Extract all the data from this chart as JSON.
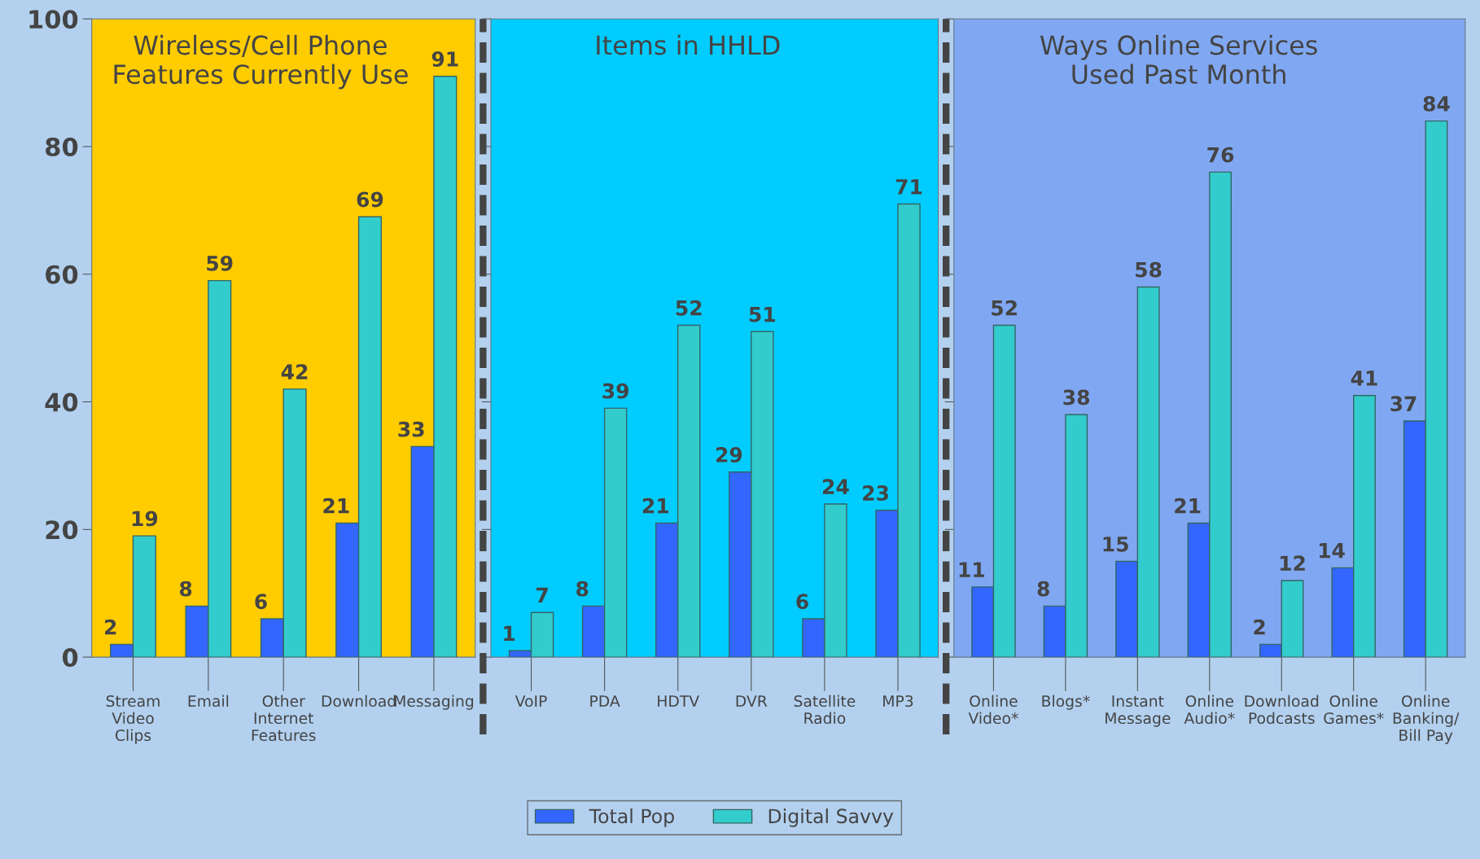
{
  "chart_data": [
    {
      "type": "bar",
      "title": "Wireless/Cell Phone\nFeatures Currently Use",
      "categories": [
        "Stream\nVideo\nClips",
        "Email",
        "Other\nInternet\nFeatures",
        "Download",
        "Messaging"
      ],
      "series": [
        {
          "color": "#3366ff",
          "values": [
            2,
            8,
            6,
            21,
            33
          ]
        },
        {
          "color": "#33cccc",
          "values": [
            19,
            59,
            42,
            69,
            91
          ]
        }
      ],
      "ylim": [
        0,
        100
      ],
      "yticks": [
        0,
        20,
        40,
        60,
        80,
        100
      ],
      "data_labels": true,
      "bands": [
        {
          "axis": "y",
          "from": 0,
          "to": 100,
          "color": "#ffcc00"
        }
      ]
    },
    {
      "type": "bar",
      "title": "Items in HHLD",
      "categories": [
        "VoIP",
        "PDA",
        "HDTV",
        "DVR",
        "Satellite\nRadio",
        "MP3"
      ],
      "series": [
        {
          "name": "Total Pop",
          "color": "#3366ff",
          "values": [
            1,
            8,
            21,
            29,
            6,
            23
          ]
        },
        {
          "name": "Digital Savvy",
          "color": "#33cccc",
          "values": [
            7,
            39,
            52,
            51,
            24,
            71
          ]
        }
      ],
      "ylim": [
        0,
        100
      ],
      "yticks": [
        0,
        20,
        40,
        60,
        80,
        100
      ],
      "data_labels": true,
      "tick_labels": "x",
      "legend": "bottom",
      "bands": [
        {
          "axis": "y",
          "from": 0,
          "to": 100,
          "color": "#00ccff"
        }
      ]
    },
    {
      "type": "bar",
      "title": "Ways Online Services\nUsed Past Month",
      "categories": [
        "Online\nVideo*",
        "Blogs*",
        "Instant\nMessage",
        "Online\nAudio*",
        "Download\nPodcasts",
        "Online\nGames*",
        "Online\nBanking/\nBill Pay"
      ],
      "series": [
        {
          "color": "#3366ff",
          "values": [
            11,
            8,
            15,
            21,
            2,
            14,
            37
          ]
        },
        {
          "color": "#33cccc",
          "values": [
            52,
            38,
            58,
            76,
            12,
            41,
            84
          ]
        }
      ],
      "ylim": [
        0,
        100
      ],
      "yticks": [
        0,
        20,
        40,
        60,
        80,
        100
      ],
      "data_labels": true,
      "tick_labels": "x",
      "bands": [
        {
          "axis": "y",
          "from": 0,
          "to": 100,
          "color": "#80a8f2"
        }
      ]
    }
  ]
}
